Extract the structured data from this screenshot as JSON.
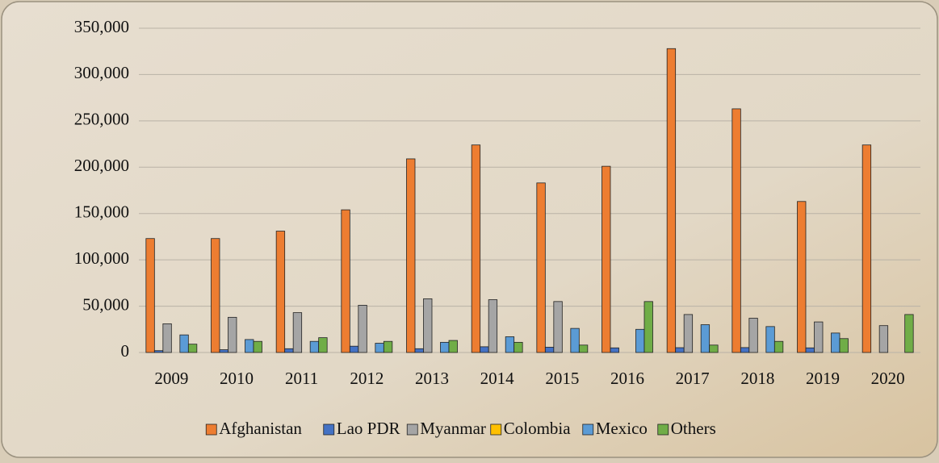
{
  "chart_data": {
    "type": "bar",
    "categories": [
      "2009",
      "2010",
      "2011",
      "2012",
      "2013",
      "2014",
      "2015",
      "2016",
      "2017",
      "2018",
      "2019",
      "2020"
    ],
    "series": [
      {
        "name": "Afghanistan",
        "color": "#ed7d31",
        "values": [
          123000,
          123000,
          131000,
          154000,
          209000,
          224000,
          183000,
          201000,
          328000,
          263000,
          163000,
          224000
        ]
      },
      {
        "name": "Lao PDR",
        "color": "#4472c4",
        "values": [
          2000,
          3000,
          4100,
          6800,
          4100,
          6200,
          5700,
          5000,
          5200,
          5300,
          5000,
          null
        ]
      },
      {
        "name": "Myanmar",
        "color": "#a5a5a5",
        "values": [
          31000,
          38000,
          43000,
          51000,
          58000,
          57000,
          55000,
          null,
          41000,
          37000,
          33000,
          29000
        ]
      },
      {
        "name": "Colombia",
        "color": "#ffc000",
        "values": [
          0,
          0,
          0,
          0,
          0,
          0,
          0,
          0,
          0,
          0,
          0,
          0
        ]
      },
      {
        "name": "Mexico",
        "color": "#5b9bd5",
        "values": [
          19000,
          14000,
          12000,
          10000,
          11000,
          17000,
          26000,
          25000,
          30000,
          28000,
          21000,
          null
        ]
      },
      {
        "name": "Others",
        "color": "#70ad47",
        "values": [
          9000,
          12000,
          16000,
          12000,
          13000,
          11000,
          8000,
          55000,
          8000,
          12000,
          15000,
          41000
        ]
      }
    ],
    "ylim": [
      0,
      350000
    ],
    "yticks": [
      0,
      {
        "value": 50000,
        "label": "50,000"
      },
      {
        "value": 100000,
        "label": "100,000"
      },
      {
        "value": 150000,
        "label": "150,000"
      },
      {
        "value": 200000,
        "label": "200,000"
      },
      {
        "value": 250000,
        "label": "250,000"
      },
      {
        "value": 300000,
        "label": "300,000"
      },
      {
        "value": 350000,
        "label": "350,000"
      }
    ],
    "grid": true,
    "legend": "bottom"
  }
}
